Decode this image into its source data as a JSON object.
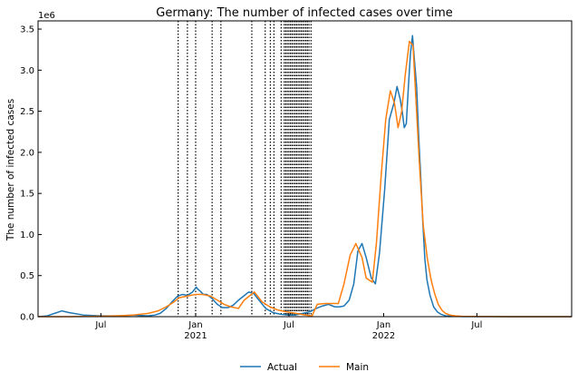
{
  "chart_data": {
    "type": "line",
    "title": "Germany: The number of infected cases over time",
    "xlabel": "",
    "ylabel": "The number of infected cases",
    "y_offset_label": "1e6",
    "y_multiplier": 1000000,
    "xlim": [
      "2020-03-01",
      "2023-01-01"
    ],
    "ylim": [
      0,
      3.6
    ],
    "grid": false,
    "legend_position": "bottom-center",
    "x_ticks": [
      {
        "date": "2020-07-01",
        "label": "Jul",
        "sublabel": ""
      },
      {
        "date": "2021-01-01",
        "label": "Jan",
        "sublabel": "2021"
      },
      {
        "date": "2021-07-01",
        "label": "Jul",
        "sublabel": ""
      },
      {
        "date": "2022-01-01",
        "label": "Jan",
        "sublabel": "2022"
      },
      {
        "date": "2022-07-01",
        "label": "Jul",
        "sublabel": ""
      }
    ],
    "y_ticks": [
      0,
      0.5,
      1.0,
      1.5,
      2.0,
      2.5,
      3.0,
      3.5
    ],
    "y_tick_labels": [
      "0.0",
      "0.5",
      "1.0",
      "1.5",
      "2.0",
      "2.5",
      "3.0",
      "3.5"
    ],
    "vlines": [
      "2020-11-28",
      "2020-12-16",
      "2021-01-01",
      "2021-02-02",
      "2021-02-19",
      "2021-04-20",
      "2021-05-16",
      "2021-05-26",
      "2021-06-02",
      "2021-06-16",
      "2021-06-22",
      "2021-06-25",
      "2021-06-28",
      "2021-07-01",
      "2021-07-04",
      "2021-07-07",
      "2021-07-10",
      "2021-07-13",
      "2021-07-16",
      "2021-07-19",
      "2021-07-22",
      "2021-07-25",
      "2021-07-28",
      "2021-07-31",
      "2021-08-03",
      "2021-08-06",
      "2021-08-09",
      "2021-08-13"
    ],
    "series": [
      {
        "name": "Actual",
        "color": "#1f77b4",
        "x": [
          "2020-03-01",
          "2020-03-19",
          "2020-04-02",
          "2020-04-16",
          "2020-04-30",
          "2020-05-28",
          "2020-07-01",
          "2020-08-05",
          "2020-09-02",
          "2020-09-30",
          "2020-10-14",
          "2020-10-24",
          "2020-11-05",
          "2020-11-16",
          "2020-11-27",
          "2020-12-06",
          "2020-12-16",
          "2020-12-26",
          "2021-01-02",
          "2021-01-06",
          "2021-01-10",
          "2021-01-16",
          "2021-01-23",
          "2021-02-02",
          "2021-02-12",
          "2021-02-22",
          "2021-03-05",
          "2021-03-15",
          "2021-03-25",
          "2021-04-04",
          "2021-04-14",
          "2021-04-24",
          "2021-05-04",
          "2021-05-17",
          "2021-05-31",
          "2021-06-14",
          "2021-06-28",
          "2021-07-14",
          "2021-07-28",
          "2021-08-11",
          "2021-08-23",
          "2021-09-04",
          "2021-09-16",
          "2021-09-28",
          "2021-10-08",
          "2021-10-16",
          "2021-10-26",
          "2021-11-04",
          "2021-11-12",
          "2021-11-20",
          "2021-11-28",
          "2021-12-08",
          "2021-12-16",
          "2021-12-24",
          "2022-01-03",
          "2022-01-12",
          "2022-01-21",
          "2022-01-27",
          "2022-02-02",
          "2022-02-06",
          "2022-02-10",
          "2022-02-14",
          "2022-02-18",
          "2022-02-22",
          "2022-02-26",
          "2022-03-02",
          "2022-03-06",
          "2022-03-10",
          "2022-03-14",
          "2022-03-18",
          "2022-03-22",
          "2022-03-26",
          "2022-04-01",
          "2022-04-08",
          "2022-04-15",
          "2022-04-22",
          "2022-05-01",
          "2022-05-15",
          "2022-06-01",
          "2022-07-01",
          "2022-08-01",
          "2022-09-01",
          "2022-10-01",
          "2022-11-01",
          "2022-12-01",
          "2023-01-01"
        ],
        "values": [
          0.0,
          0.01,
          0.04,
          0.07,
          0.05,
          0.02,
          0.01,
          0.01,
          0.02,
          0.01,
          0.02,
          0.04,
          0.1,
          0.18,
          0.25,
          0.27,
          0.26,
          0.3,
          0.36,
          0.33,
          0.31,
          0.27,
          0.27,
          0.22,
          0.15,
          0.11,
          0.11,
          0.14,
          0.2,
          0.25,
          0.3,
          0.28,
          0.2,
          0.1,
          0.05,
          0.03,
          0.02,
          0.02,
          0.04,
          0.06,
          0.1,
          0.13,
          0.15,
          0.12,
          0.12,
          0.13,
          0.2,
          0.4,
          0.8,
          0.89,
          0.72,
          0.47,
          0.4,
          0.78,
          1.55,
          2.4,
          2.6,
          2.8,
          2.65,
          2.5,
          2.3,
          2.35,
          2.8,
          3.2,
          3.42,
          3.1,
          2.8,
          2.2,
          1.7,
          1.15,
          0.7,
          0.45,
          0.26,
          0.12,
          0.06,
          0.03,
          0.01,
          0.005,
          0.002,
          0.001,
          0.001,
          0.0,
          0.0,
          0.0,
          0.0,
          0.0
        ]
      },
      {
        "name": "Main",
        "color": "#ff7f0e",
        "x": [
          "2020-03-01",
          "2020-05-01",
          "2020-07-01",
          "2020-08-01",
          "2020-09-01",
          "2020-10-01",
          "2020-10-20",
          "2020-11-05",
          "2020-11-20",
          "2020-11-30",
          "2020-12-15",
          "2020-12-31",
          "2021-01-15",
          "2021-01-30",
          "2021-02-15",
          "2021-02-25",
          "2021-03-10",
          "2021-03-25",
          "2021-04-05",
          "2021-04-15",
          "2021-04-25",
          "2021-05-10",
          "2021-05-25",
          "2021-06-10",
          "2021-06-25",
          "2021-07-15",
          "2021-08-01",
          "2021-08-15",
          "2021-08-25",
          "2021-09-10",
          "2021-09-25",
          "2021-10-05",
          "2021-10-16",
          "2021-10-28",
          "2021-11-08",
          "2021-11-20",
          "2021-11-28",
          "2021-12-10",
          "2021-12-18",
          "2021-12-27",
          "2022-01-05",
          "2022-01-14",
          "2022-01-22",
          "2022-01-29",
          "2022-02-05",
          "2022-02-12",
          "2022-02-20",
          "2022-02-27",
          "2022-03-05",
          "2022-03-12",
          "2022-03-19",
          "2022-03-27",
          "2022-04-03",
          "2022-04-10",
          "2022-04-17",
          "2022-04-24",
          "2022-05-01",
          "2022-05-10",
          "2022-05-20",
          "2022-06-01",
          "2022-07-01",
          "2022-08-01",
          "2022-09-01",
          "2022-10-01",
          "2022-11-01",
          "2022-12-01",
          "2023-01-01"
        ],
        "values": [
          0.0,
          0.0,
          0.005,
          0.01,
          0.02,
          0.04,
          0.07,
          0.12,
          0.18,
          0.23,
          0.25,
          0.27,
          0.27,
          0.25,
          0.19,
          0.15,
          0.12,
          0.1,
          0.2,
          0.25,
          0.3,
          0.18,
          0.12,
          0.08,
          0.06,
          0.04,
          0.02,
          0.01,
          0.15,
          0.16,
          0.16,
          0.16,
          0.4,
          0.75,
          0.89,
          0.72,
          0.47,
          0.42,
          0.9,
          1.7,
          2.4,
          2.75,
          2.6,
          2.3,
          2.5,
          2.95,
          3.35,
          3.3,
          2.6,
          1.8,
          1.1,
          0.7,
          0.45,
          0.28,
          0.15,
          0.08,
          0.04,
          0.02,
          0.01,
          0.005,
          0.002,
          0.001,
          0.0,
          0.0,
          0.0,
          0.0,
          0.0
        ]
      }
    ]
  }
}
